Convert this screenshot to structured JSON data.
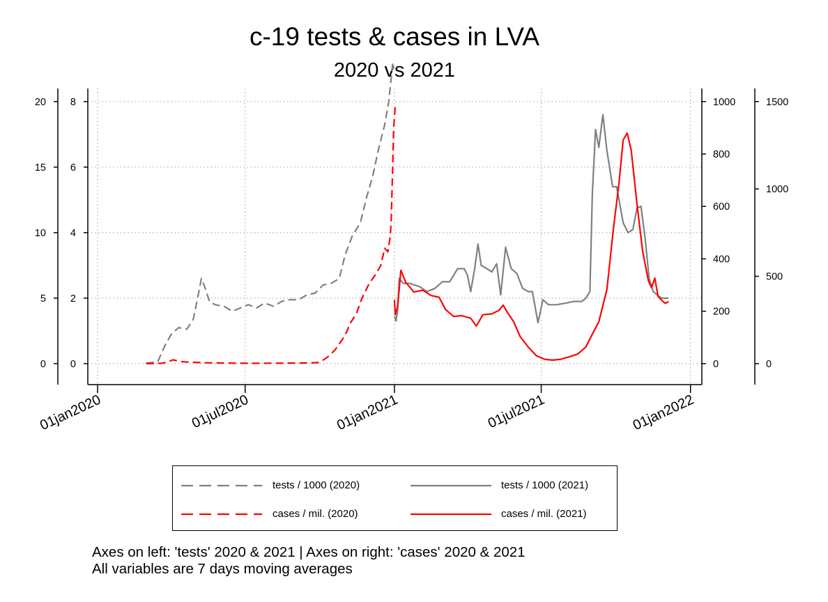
{
  "title": "c-19 tests & cases in LVA",
  "subtitle": "2020 vs 2021",
  "notes": [
    "Axes on left: 'tests' 2020 & 2021 | Axes on right: 'cases' 2020 & 2021",
    "All variables are 7 days moving averages"
  ],
  "legend": {
    "items": [
      {
        "label": "tests / 1000 (2020)",
        "color": "#808080",
        "dash": true
      },
      {
        "label": "tests / 1000 (2021)",
        "color": "#808080",
        "dash": false
      },
      {
        "label": "cases / mil. (2020)",
        "color": "#ff0000",
        "dash": true
      },
      {
        "label": "cases / mil. (2021)",
        "color": "#ff0000",
        "dash": false
      }
    ]
  },
  "chart_data": {
    "type": "line",
    "title": "c-19 tests & cases in LVA",
    "subtitle": "2020 vs 2021",
    "x_axis": {
      "type": "date",
      "ticks": [
        "01jan2020",
        "01jul2020",
        "01jan2021",
        "01jul2021",
        "01jan2022"
      ],
      "range": [
        "2019-12-20",
        "2022-01-15"
      ]
    },
    "y_axes": {
      "left_outer": {
        "ticks": [
          0,
          5,
          10,
          15,
          20
        ],
        "range": [
          -1.6,
          21
        ]
      },
      "left_inner": {
        "ticks": [
          0,
          2,
          4,
          6,
          8
        ],
        "range": [
          -0.64,
          8.4
        ]
      },
      "right_inner": {
        "ticks": [
          0,
          200,
          400,
          600,
          800,
          1000
        ],
        "range": [
          -80,
          1050
        ]
      },
      "right_outer": {
        "ticks": [
          0,
          500,
          1000,
          1500
        ],
        "range": [
          -120,
          1575
        ]
      }
    },
    "grid": true,
    "legend_position": "bottom",
    "series": [
      {
        "name": "tests / 1000 (2020)",
        "axis": "left_inner",
        "color": "#808080",
        "dash": true,
        "points": [
          [
            "2020-03-01",
            0.02
          ],
          [
            "2020-03-15",
            0.05
          ],
          [
            "2020-03-25",
            0.6
          ],
          [
            "2020-04-01",
            0.9
          ],
          [
            "2020-04-10",
            1.1
          ],
          [
            "2020-04-20",
            1.05
          ],
          [
            "2020-04-28",
            1.35
          ],
          [
            "2020-05-05",
            2.2
          ],
          [
            "2020-05-08",
            2.6
          ],
          [
            "2020-05-12",
            2.35
          ],
          [
            "2020-05-18",
            1.9
          ],
          [
            "2020-05-25",
            1.8
          ],
          [
            "2020-06-05",
            1.75
          ],
          [
            "2020-06-15",
            1.6
          ],
          [
            "2020-06-25",
            1.7
          ],
          [
            "2020-07-05",
            1.8
          ],
          [
            "2020-07-15",
            1.7
          ],
          [
            "2020-07-25",
            1.85
          ],
          [
            "2020-08-05",
            1.75
          ],
          [
            "2020-08-15",
            1.9
          ],
          [
            "2020-08-25",
            1.95
          ],
          [
            "2020-09-05",
            1.95
          ],
          [
            "2020-09-15",
            2.1
          ],
          [
            "2020-09-25",
            2.15
          ],
          [
            "2020-10-05",
            2.4
          ],
          [
            "2020-10-15",
            2.45
          ],
          [
            "2020-10-25",
            2.6
          ],
          [
            "2020-11-01",
            3.3
          ],
          [
            "2020-11-10",
            3.9
          ],
          [
            "2020-11-20",
            4.3
          ],
          [
            "2020-11-28",
            5.1
          ],
          [
            "2020-12-05",
            5.7
          ],
          [
            "2020-12-12",
            6.5
          ],
          [
            "2020-12-20",
            7.3
          ],
          [
            "2020-12-25",
            8.0
          ],
          [
            "2020-12-30",
            9.2
          ],
          [
            "2020-12-31",
            9.0
          ]
        ]
      },
      {
        "name": "tests / 1000 (2021)",
        "axis": "left_inner",
        "color": "#808080",
        "dash": false,
        "points": [
          [
            "2021-01-01",
            1.45
          ],
          [
            "2021-01-03",
            1.3
          ],
          [
            "2021-01-05",
            1.65
          ],
          [
            "2021-01-07",
            2.6
          ],
          [
            "2021-01-12",
            2.45
          ],
          [
            "2021-01-20",
            2.45
          ],
          [
            "2021-02-01",
            2.35
          ],
          [
            "2021-02-10",
            2.2
          ],
          [
            "2021-02-20",
            2.3
          ],
          [
            "2021-03-01",
            2.5
          ],
          [
            "2021-03-10",
            2.5
          ],
          [
            "2021-03-20",
            2.9
          ],
          [
            "2021-03-28",
            2.9
          ],
          [
            "2021-04-01",
            2.7
          ],
          [
            "2021-04-05",
            2.2
          ],
          [
            "2021-04-10",
            2.9
          ],
          [
            "2021-04-14",
            3.65
          ],
          [
            "2021-04-18",
            3.0
          ],
          [
            "2021-04-25",
            2.9
          ],
          [
            "2021-05-01",
            2.8
          ],
          [
            "2021-05-07",
            3.05
          ],
          [
            "2021-05-12",
            2.1
          ],
          [
            "2021-05-18",
            3.55
          ],
          [
            "2021-05-25",
            2.9
          ],
          [
            "2021-06-01",
            2.75
          ],
          [
            "2021-06-08",
            2.3
          ],
          [
            "2021-06-15",
            2.2
          ],
          [
            "2021-06-20",
            2.2
          ],
          [
            "2021-06-27",
            1.25
          ],
          [
            "2021-07-03",
            1.95
          ],
          [
            "2021-07-10",
            1.8
          ],
          [
            "2021-07-20",
            1.8
          ],
          [
            "2021-08-01",
            1.85
          ],
          [
            "2021-08-10",
            1.9
          ],
          [
            "2021-08-20",
            1.9
          ],
          [
            "2021-08-25",
            2.0
          ],
          [
            "2021-08-30",
            2.2
          ],
          [
            "2021-09-02",
            5.2
          ],
          [
            "2021-09-06",
            7.15
          ],
          [
            "2021-09-10",
            6.6
          ],
          [
            "2021-09-15",
            7.6
          ],
          [
            "2021-09-20",
            6.5
          ],
          [
            "2021-09-27",
            5.4
          ],
          [
            "2021-10-02",
            5.4
          ],
          [
            "2021-10-10",
            4.3
          ],
          [
            "2021-10-16",
            4.0
          ],
          [
            "2021-10-22",
            4.1
          ],
          [
            "2021-10-27",
            4.75
          ],
          [
            "2021-11-01",
            4.8
          ],
          [
            "2021-11-06",
            3.85
          ],
          [
            "2021-11-11",
            2.6
          ],
          [
            "2021-11-16",
            2.2
          ],
          [
            "2021-11-21",
            2.1
          ],
          [
            "2021-11-26",
            2.0
          ],
          [
            "2021-12-02",
            2.0
          ],
          [
            "2021-12-05",
            2.0
          ]
        ]
      },
      {
        "name": "cases / mil. (2020)",
        "axis": "right_outer",
        "color": "#ff0000",
        "dash": true,
        "points": [
          [
            "2020-03-01",
            0
          ],
          [
            "2020-03-20",
            2
          ],
          [
            "2020-03-28",
            10
          ],
          [
            "2020-04-03",
            22
          ],
          [
            "2020-04-12",
            12
          ],
          [
            "2020-04-25",
            8
          ],
          [
            "2020-05-15",
            5
          ],
          [
            "2020-06-15",
            3
          ],
          [
            "2020-07-15",
            2
          ],
          [
            "2020-08-15",
            3
          ],
          [
            "2020-09-15",
            4
          ],
          [
            "2020-09-30",
            6
          ],
          [
            "2020-10-10",
            35
          ],
          [
            "2020-10-20",
            80
          ],
          [
            "2020-11-01",
            160
          ],
          [
            "2020-11-08",
            235
          ],
          [
            "2020-11-15",
            285
          ],
          [
            "2020-11-22",
            375
          ],
          [
            "2020-12-01",
            460
          ],
          [
            "2020-12-08",
            505
          ],
          [
            "2020-12-15",
            560
          ],
          [
            "2020-12-20",
            660
          ],
          [
            "2020-12-24",
            640
          ],
          [
            "2020-12-27",
            735
          ],
          [
            "2020-12-28",
            825
          ],
          [
            "2020-12-30",
            1150
          ],
          [
            "2020-12-31",
            1350
          ],
          [
            "2021-01-02",
            1475
          ]
        ]
      },
      {
        "name": "cases / mil. (2021)",
        "axis": "right_outer",
        "color": "#ff0000",
        "dash": false,
        "points": [
          [
            "2021-01-01",
            365
          ],
          [
            "2021-01-02",
            280
          ],
          [
            "2021-01-05",
            330
          ],
          [
            "2021-01-09",
            535
          ],
          [
            "2021-01-15",
            465
          ],
          [
            "2021-01-25",
            410
          ],
          [
            "2021-02-05",
            420
          ],
          [
            "2021-02-15",
            390
          ],
          [
            "2021-02-25",
            380
          ],
          [
            "2021-03-05",
            310
          ],
          [
            "2021-03-15",
            270
          ],
          [
            "2021-03-25",
            275
          ],
          [
            "2021-04-05",
            260
          ],
          [
            "2021-04-12",
            215
          ],
          [
            "2021-04-20",
            280
          ],
          [
            "2021-05-01",
            285
          ],
          [
            "2021-05-10",
            305
          ],
          [
            "2021-05-15",
            335
          ],
          [
            "2021-05-20",
            295
          ],
          [
            "2021-05-28",
            240
          ],
          [
            "2021-06-05",
            155
          ],
          [
            "2021-06-15",
            95
          ],
          [
            "2021-06-25",
            45
          ],
          [
            "2021-07-05",
            25
          ],
          [
            "2021-07-15",
            20
          ],
          [
            "2021-07-25",
            25
          ],
          [
            "2021-08-05",
            40
          ],
          [
            "2021-08-15",
            55
          ],
          [
            "2021-08-25",
            95
          ],
          [
            "2021-09-01",
            160
          ],
          [
            "2021-09-10",
            240
          ],
          [
            "2021-09-20",
            425
          ],
          [
            "2021-09-28",
            770
          ],
          [
            "2021-10-05",
            1040
          ],
          [
            "2021-10-10",
            1280
          ],
          [
            "2021-10-15",
            1320
          ],
          [
            "2021-10-20",
            1220
          ],
          [
            "2021-10-27",
            915
          ],
          [
            "2021-11-03",
            645
          ],
          [
            "2021-11-10",
            475
          ],
          [
            "2021-11-14",
            435
          ],
          [
            "2021-11-18",
            490
          ],
          [
            "2021-11-22",
            385
          ],
          [
            "2021-11-26",
            365
          ],
          [
            "2021-12-01",
            345
          ],
          [
            "2021-12-05",
            355
          ]
        ]
      }
    ]
  }
}
